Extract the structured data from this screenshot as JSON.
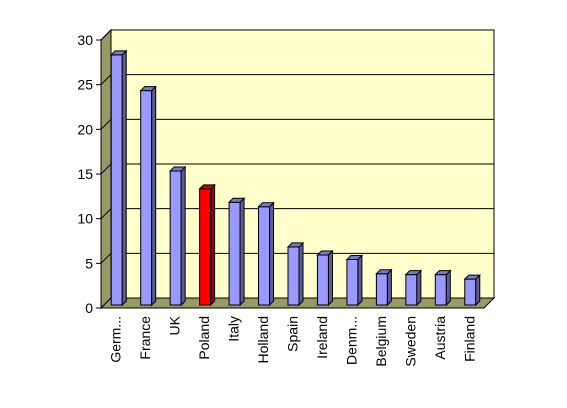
{
  "chart_data": {
    "type": "bar",
    "title": "",
    "xlabel": "",
    "ylabel": "",
    "categories": [
      "Germ...",
      "France",
      "UK",
      "Poland",
      "Italy",
      "Holland",
      "Spain",
      "Ireland",
      "Denm...",
      "Belgium",
      "Sweden",
      "Austria",
      "Finland"
    ],
    "values": [
      28,
      24,
      15,
      13,
      11.5,
      11,
      6.5,
      5.6,
      5.1,
      3.5,
      3.4,
      3.4,
      2.9
    ],
    "highlight": "Poland",
    "y_ticks": [
      "0",
      "5",
      "10",
      "15",
      "20",
      "25",
      "30"
    ],
    "ylim": [
      0,
      30
    ],
    "grid": true,
    "legend": "none",
    "colors": {
      "bar": "#9999ff",
      "bar_highlight": "#ff0000",
      "plot_background": "#ffffcc",
      "side_wall": "#999966",
      "floor": "#999966",
      "gridline": "#000000"
    }
  }
}
